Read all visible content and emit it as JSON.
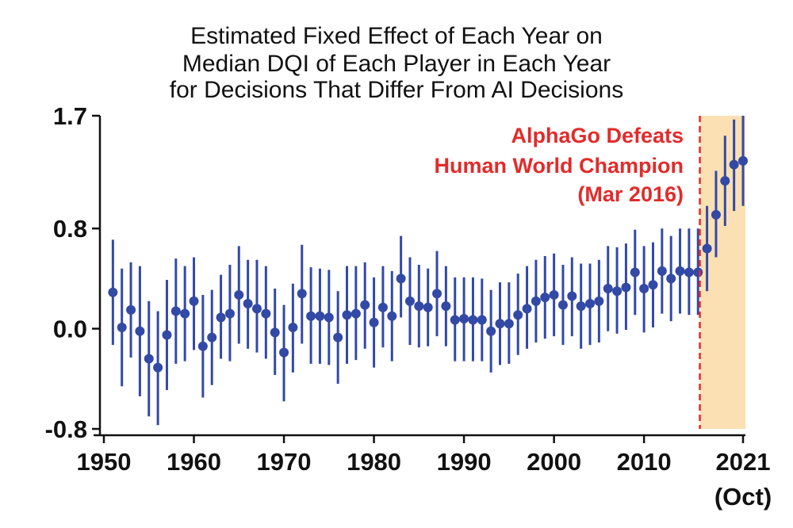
{
  "chart_data": {
    "type": "scatter",
    "title_lines": [
      "Estimated Fixed Effect of Each Year on",
      "Median DQI of Each Player in Each Year",
      "for Decisions That Differ From AI Decisions"
    ],
    "xlabel": "",
    "ylabel": "",
    "xlim": [
      1948.5,
      2021.5
    ],
    "ylim": [
      -0.8,
      1.7
    ],
    "x_ticks": [
      1950,
      1960,
      1970,
      1980,
      1990,
      2000,
      2010,
      2021
    ],
    "x_tick_labels": [
      "1950",
      "1960",
      "1970",
      "1980",
      "1990",
      "2000",
      "2010",
      "2021"
    ],
    "x_tick_sublabel": "(Oct)",
    "y_ticks": [
      -0.8,
      0.0,
      0.8,
      1.7
    ],
    "y_tick_labels": [
      "-0.8",
      "0.0",
      "0.8",
      "1.7"
    ],
    "grid": false,
    "colors": {
      "points": "#3349a6",
      "annotation": "#e32b2b",
      "highlight": "#fbe0b3"
    },
    "annotation": {
      "lines": [
        "AlphaGo Defeats",
        "Human World Champion",
        "(Mar 2016)"
      ],
      "event_x": 2016.2
    },
    "highlight_range": [
      2016.2,
      2021.5
    ],
    "points": [
      {
        "x": 1951,
        "y": 0.29,
        "lo": -0.13,
        "hi": 0.71
      },
      {
        "x": 1952,
        "y": 0.01,
        "lo": -0.46,
        "hi": 0.48
      },
      {
        "x": 1953,
        "y": 0.15,
        "lo": -0.23,
        "hi": 0.53
      },
      {
        "x": 1954,
        "y": -0.02,
        "lo": -0.54,
        "hi": 0.5
      },
      {
        "x": 1955,
        "y": -0.24,
        "lo": -0.7,
        "hi": 0.22
      },
      {
        "x": 1956,
        "y": -0.31,
        "lo": -0.77,
        "hi": 0.14
      },
      {
        "x": 1957,
        "y": -0.05,
        "lo": -0.49,
        "hi": 0.39
      },
      {
        "x": 1958,
        "y": 0.14,
        "lo": -0.28,
        "hi": 0.56
      },
      {
        "x": 1959,
        "y": 0.12,
        "lo": -0.26,
        "hi": 0.5
      },
      {
        "x": 1960,
        "y": 0.22,
        "lo": -0.17,
        "hi": 0.57
      },
      {
        "x": 1961,
        "y": -0.14,
        "lo": -0.55,
        "hi": 0.27
      },
      {
        "x": 1962,
        "y": -0.07,
        "lo": -0.45,
        "hi": 0.31
      },
      {
        "x": 1963,
        "y": 0.09,
        "lo": -0.24,
        "hi": 0.43
      },
      {
        "x": 1964,
        "y": 0.12,
        "lo": -0.26,
        "hi": 0.51
      },
      {
        "x": 1965,
        "y": 0.27,
        "lo": -0.12,
        "hi": 0.66
      },
      {
        "x": 1966,
        "y": 0.2,
        "lo": -0.16,
        "hi": 0.55
      },
      {
        "x": 1967,
        "y": 0.16,
        "lo": -0.19,
        "hi": 0.55
      },
      {
        "x": 1968,
        "y": 0.12,
        "lo": -0.24,
        "hi": 0.5
      },
      {
        "x": 1969,
        "y": -0.03,
        "lo": -0.37,
        "hi": 0.32
      },
      {
        "x": 1970,
        "y": -0.19,
        "lo": -0.58,
        "hi": 0.19
      },
      {
        "x": 1971,
        "y": 0.01,
        "lo": -0.35,
        "hi": 0.36
      },
      {
        "x": 1972,
        "y": 0.28,
        "lo": -0.12,
        "hi": 0.67
      },
      {
        "x": 1973,
        "y": 0.1,
        "lo": -0.28,
        "hi": 0.49
      },
      {
        "x": 1974,
        "y": 0.1,
        "lo": -0.28,
        "hi": 0.48
      },
      {
        "x": 1975,
        "y": 0.09,
        "lo": -0.29,
        "hi": 0.47
      },
      {
        "x": 1976,
        "y": -0.07,
        "lo": -0.44,
        "hi": 0.3
      },
      {
        "x": 1977,
        "y": 0.11,
        "lo": -0.28,
        "hi": 0.5
      },
      {
        "x": 1978,
        "y": 0.12,
        "lo": -0.25,
        "hi": 0.5
      },
      {
        "x": 1979,
        "y": 0.19,
        "lo": -0.16,
        "hi": 0.53
      },
      {
        "x": 1980,
        "y": 0.05,
        "lo": -0.31,
        "hi": 0.41
      },
      {
        "x": 1981,
        "y": 0.17,
        "lo": -0.15,
        "hi": 0.5
      },
      {
        "x": 1982,
        "y": 0.1,
        "lo": -0.26,
        "hi": 0.46
      },
      {
        "x": 1983,
        "y": 0.4,
        "lo": 0.09,
        "hi": 0.74
      },
      {
        "x": 1984,
        "y": 0.22,
        "lo": -0.13,
        "hi": 0.57
      },
      {
        "x": 1985,
        "y": 0.18,
        "lo": -0.15,
        "hi": 0.51
      },
      {
        "x": 1986,
        "y": 0.17,
        "lo": -0.14,
        "hi": 0.48
      },
      {
        "x": 1987,
        "y": 0.28,
        "lo": -0.06,
        "hi": 0.62
      },
      {
        "x": 1988,
        "y": 0.18,
        "lo": -0.14,
        "hi": 0.5
      },
      {
        "x": 1989,
        "y": 0.07,
        "lo": -0.26,
        "hi": 0.41
      },
      {
        "x": 1990,
        "y": 0.08,
        "lo": -0.26,
        "hi": 0.41
      },
      {
        "x": 1991,
        "y": 0.07,
        "lo": -0.26,
        "hi": 0.41
      },
      {
        "x": 1992,
        "y": 0.07,
        "lo": -0.26,
        "hi": 0.4
      },
      {
        "x": 1993,
        "y": -0.02,
        "lo": -0.35,
        "hi": 0.31
      },
      {
        "x": 1994,
        "y": 0.04,
        "lo": -0.29,
        "hi": 0.37
      },
      {
        "x": 1995,
        "y": 0.04,
        "lo": -0.28,
        "hi": 0.37
      },
      {
        "x": 1996,
        "y": 0.11,
        "lo": -0.21,
        "hi": 0.44
      },
      {
        "x": 1997,
        "y": 0.16,
        "lo": -0.16,
        "hi": 0.5
      },
      {
        "x": 1998,
        "y": 0.22,
        "lo": -0.11,
        "hi": 0.55
      },
      {
        "x": 1999,
        "y": 0.25,
        "lo": -0.08,
        "hi": 0.58
      },
      {
        "x": 2000,
        "y": 0.27,
        "lo": -0.06,
        "hi": 0.6
      },
      {
        "x": 2001,
        "y": 0.19,
        "lo": -0.13,
        "hi": 0.51
      },
      {
        "x": 2002,
        "y": 0.26,
        "lo": -0.06,
        "hi": 0.57
      },
      {
        "x": 2003,
        "y": 0.18,
        "lo": -0.16,
        "hi": 0.52
      },
      {
        "x": 2004,
        "y": 0.2,
        "lo": -0.13,
        "hi": 0.52
      },
      {
        "x": 2005,
        "y": 0.22,
        "lo": -0.11,
        "hi": 0.55
      },
      {
        "x": 2006,
        "y": 0.32,
        "lo": -0.02,
        "hi": 0.66
      },
      {
        "x": 2007,
        "y": 0.3,
        "lo": -0.04,
        "hi": 0.65
      },
      {
        "x": 2008,
        "y": 0.33,
        "lo": -0.01,
        "hi": 0.68
      },
      {
        "x": 2009,
        "y": 0.45,
        "lo": 0.11,
        "hi": 0.79
      },
      {
        "x": 2010,
        "y": 0.32,
        "lo": -0.03,
        "hi": 0.66
      },
      {
        "x": 2011,
        "y": 0.35,
        "lo": 0.01,
        "hi": 0.69
      },
      {
        "x": 2012,
        "y": 0.46,
        "lo": 0.12,
        "hi": 0.8
      },
      {
        "x": 2013,
        "y": 0.4,
        "lo": 0.06,
        "hi": 0.74
      },
      {
        "x": 2014,
        "y": 0.46,
        "lo": 0.12,
        "hi": 0.8
      },
      {
        "x": 2015,
        "y": 0.45,
        "lo": 0.11,
        "hi": 0.8
      },
      {
        "x": 2016,
        "y": 0.45,
        "lo": 0.11,
        "hi": 0.8
      },
      {
        "x": 2017,
        "y": 0.64,
        "lo": 0.3,
        "hi": 0.98
      },
      {
        "x": 2018,
        "y": 0.91,
        "lo": 0.57,
        "hi": 1.26
      },
      {
        "x": 2019,
        "y": 1.18,
        "lo": 0.82,
        "hi": 1.54
      },
      {
        "x": 2020,
        "y": 1.31,
        "lo": 0.94,
        "hi": 1.67
      },
      {
        "x": 2021,
        "y": 1.34,
        "lo": 0.98,
        "hi": 1.7
      }
    ]
  }
}
